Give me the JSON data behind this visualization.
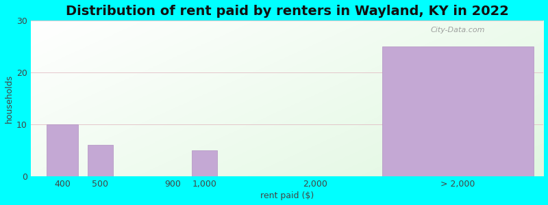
{
  "title": "Distribution of rent paid by renters in Wayland, KY in 2022",
  "xlabel": "rent paid ($)",
  "ylabel": "households",
  "categories": [
    "400",
    "500",
    "900",
    "1,000",
    "2,000",
    "> 2,000"
  ],
  "values": [
    10,
    6,
    0,
    5,
    0,
    25
  ],
  "bar_color": "#c4a8d4",
  "bar_edgecolor": "#b090c0",
  "background_color": "#00FFFF",
  "ylim": [
    0,
    30
  ],
  "yticks": [
    0,
    10,
    20,
    30
  ],
  "title_fontsize": 14,
  "axis_label_fontsize": 9,
  "tick_fontsize": 9,
  "bar_positions": [
    1.0,
    2.2,
    4.5,
    5.5,
    9.0,
    13.5
  ],
  "bar_widths": [
    1.0,
    0.8,
    0.8,
    0.8,
    0.8,
    4.8
  ],
  "xlim": [
    0.0,
    16.2
  ],
  "watermark_text": "City-Data.com",
  "gridline_color": "#d8ead8",
  "plot_bg_left": "#d8f0d0",
  "plot_bg_right": "#f8fff8"
}
